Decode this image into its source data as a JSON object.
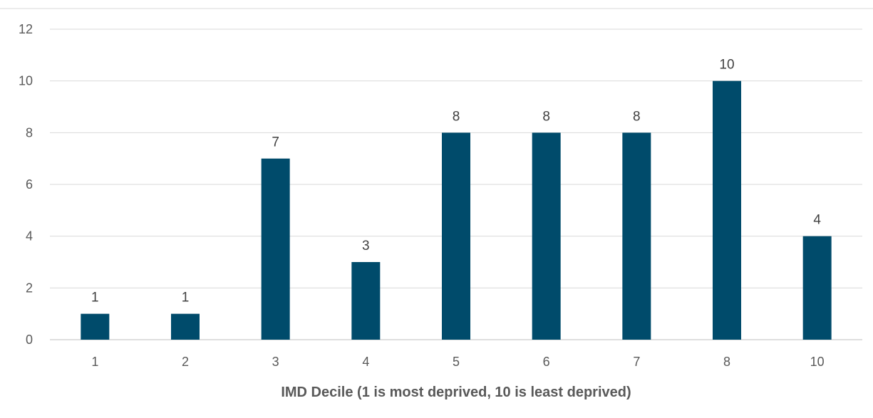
{
  "chart_data": {
    "type": "bar",
    "categories": [
      "1",
      "2",
      "3",
      "4",
      "5",
      "6",
      "7",
      "8",
      "10"
    ],
    "values": [
      1,
      1,
      7,
      3,
      8,
      8,
      8,
      10,
      4
    ],
    "data_labels": [
      "1",
      "1",
      "7",
      "3",
      "8",
      "8",
      "8",
      "10",
      "4"
    ],
    "title": "",
    "xlabel": "IMD Decile (1 is most deprived, 10 is least deprived)",
    "ylabel": "",
    "ylim": [
      0,
      12
    ],
    "yticks": [
      0,
      2,
      4,
      6,
      8,
      10,
      12
    ],
    "grid": true,
    "legend": "none",
    "bar_color": "#004B6B"
  }
}
